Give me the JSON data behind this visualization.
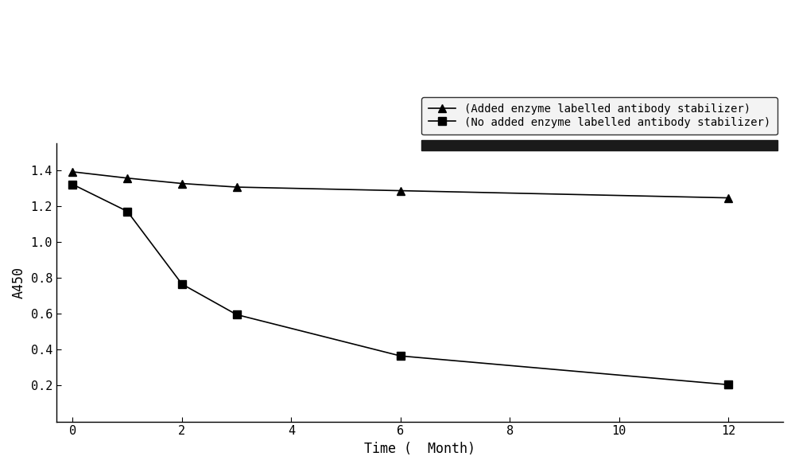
{
  "series1_label": "(Added enzyme labelled antibody stabilizer)",
  "series2_label": "(No added enzyme labelled antibody stabilizer)",
  "series1_x": [
    0,
    1,
    2,
    3,
    6,
    12
  ],
  "series1_y": [
    1.39,
    1.355,
    1.325,
    1.305,
    1.285,
    1.245
  ],
  "series2_x": [
    0,
    1,
    2,
    3,
    6,
    12
  ],
  "series2_y": [
    1.32,
    1.17,
    0.765,
    0.595,
    0.365,
    0.205
  ],
  "xlabel": "Time (  Month)",
  "ylabel": "A450",
  "xlim": [
    -0.3,
    13.0
  ],
  "ylim": [
    0.0,
    1.55
  ],
  "xticks": [
    0,
    2,
    4,
    6,
    8,
    10,
    12
  ],
  "yticks": [
    0.2,
    0.4,
    0.6,
    0.8,
    1.0,
    1.2,
    1.4
  ],
  "line_color": "#000000",
  "marker1": "^",
  "marker2": "s",
  "markersize": 7,
  "linewidth": 1.2,
  "legend_bg": "#f0f0f0",
  "legend_edge": "#000000",
  "legend_text_color": "#000000",
  "fig_bg": "#ffffff",
  "axes_bg": "#ffffff"
}
